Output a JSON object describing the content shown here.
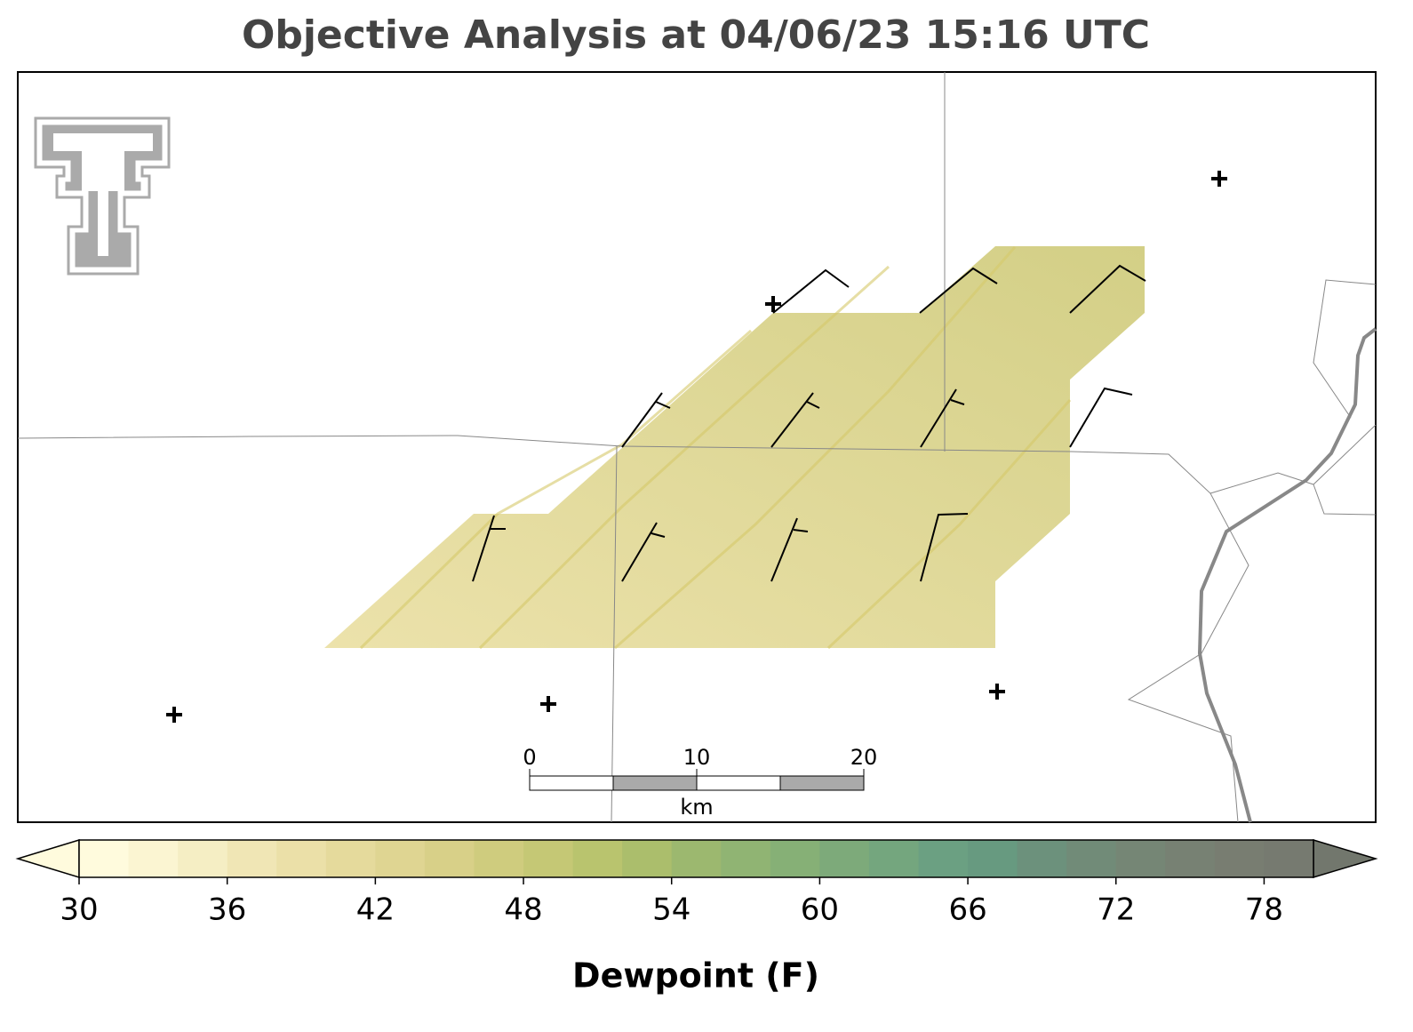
{
  "title": "Objective Analysis at 04/06/23 15:16 UTC",
  "colorbar": {
    "label": "Dewpoint (F)",
    "lim": [
      30,
      80
    ],
    "ticks": [
      30,
      36,
      42,
      48,
      54,
      60,
      66,
      72,
      78
    ],
    "colors": [
      "#fffbdd",
      "#fbf5d2",
      "#f5eec4",
      "#f0e6b5",
      "#ebe0a8",
      "#e5da9c",
      "#dfd592",
      "#d8d088",
      "#cfcc7e",
      "#c5c875",
      "#b9c46e",
      "#abbe6c",
      "#9cb86f",
      "#90b473",
      "#86b076",
      "#7daa7a",
      "#74a67e",
      "#6ba082",
      "#679a80",
      "#6c917c",
      "#718b78",
      "#758675",
      "#778173",
      "#787d71",
      "#767a70"
    ],
    "extend_min_color": "#fffbdd",
    "extend_max_color": "#72776d"
  },
  "scale_bar": {
    "ticks": [
      0,
      10,
      20
    ],
    "unit": "km"
  }
}
